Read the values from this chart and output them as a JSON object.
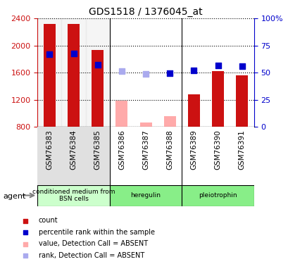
{
  "title": "GDS1518 / 1376045_at",
  "samples": [
    "GSM76383",
    "GSM76384",
    "GSM76385",
    "GSM76386",
    "GSM76387",
    "GSM76388",
    "GSM76389",
    "GSM76390",
    "GSM76391"
  ],
  "bar_values": [
    2320,
    2320,
    1930,
    null,
    null,
    null,
    1280,
    1620,
    1560
  ],
  "bar_values_absent": [
    null,
    null,
    null,
    1190,
    860,
    960,
    null,
    null,
    null
  ],
  "blue_squares": [
    1870,
    1880,
    1720,
    null,
    null,
    1590,
    1630,
    1710,
    1700
  ],
  "blue_squares_absent": [
    null,
    null,
    null,
    1620,
    1580,
    null,
    null,
    null,
    null
  ],
  "ylim": [
    800,
    2400
  ],
  "y2lim": [
    0,
    100
  ],
  "y_ticks": [
    800,
    1200,
    1600,
    2000,
    2400
  ],
  "y2_ticks": [
    0,
    25,
    50,
    75,
    100
  ],
  "bar_color": "#cc1111",
  "bar_absent_color": "#ffaaaa",
  "blue_color": "#0000cc",
  "blue_absent_color": "#aaaaee",
  "agent_groups": [
    {
      "label": "conditioned medium from\nBSN cells",
      "start": 0,
      "end": 3,
      "color": "#ccffcc"
    },
    {
      "label": "heregulin",
      "start": 3,
      "end": 6,
      "color": "#88ff88"
    },
    {
      "label": "pleiotrophin",
      "start": 6,
      "end": 9,
      "color": "#88ff88"
    }
  ],
  "legend_items": [
    {
      "label": "count",
      "color": "#cc1111",
      "absent": false
    },
    {
      "label": "percentile rank within the sample",
      "color": "#0000cc",
      "absent": false
    },
    {
      "label": "value, Detection Call = ABSENT",
      "color": "#ffaaaa",
      "absent": false
    },
    {
      "label": "rank, Detection Call = ABSENT",
      "color": "#aaaaee",
      "absent": false
    }
  ]
}
